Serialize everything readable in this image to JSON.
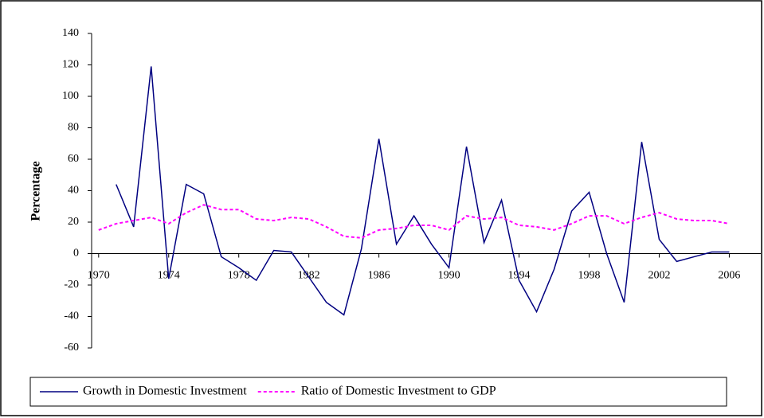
{
  "chart_data": {
    "type": "line",
    "x": [
      1970,
      1971,
      1972,
      1973,
      1974,
      1975,
      1976,
      1977,
      1978,
      1979,
      1980,
      1981,
      1982,
      1983,
      1984,
      1985,
      1986,
      1987,
      1988,
      1989,
      1990,
      1991,
      1992,
      1993,
      1994,
      1995,
      1996,
      1997,
      1998,
      1999,
      2000,
      2001,
      2002,
      2003,
      2004,
      2005,
      2006
    ],
    "series": [
      {
        "name": "Growth in Domestic Investment",
        "color": "#000080",
        "dash": false,
        "values": [
          null,
          44,
          17,
          119,
          -16,
          44,
          38,
          -2,
          -9,
          -17,
          2,
          1,
          -15,
          -31,
          -39,
          3,
          73,
          6,
          24,
          6,
          -9,
          68,
          7,
          34,
          -17,
          -37,
          -10,
          27,
          39,
          0,
          -31,
          71,
          9,
          -5,
          -2,
          1,
          1
        ]
      },
      {
        "name": "Ratio of Domestic Investment to GDP",
        "color": "#ff00ff",
        "dash": true,
        "values": [
          15,
          19,
          21,
          23,
          19,
          26,
          31,
          28,
          28,
          22,
          21,
          23,
          22,
          17,
          11,
          10,
          15,
          16,
          18,
          18,
          15,
          24,
          22,
          23,
          18,
          17,
          15,
          19,
          24,
          24,
          19,
          23,
          26,
          22,
          21,
          21,
          19
        ]
      }
    ],
    "y_label": "Percentage",
    "xlim": [
      1969.6,
      2007.8
    ],
    "xticks": [
      1970,
      1974,
      1978,
      1982,
      1986,
      1990,
      1994,
      1998,
      2002,
      2006
    ],
    "ylim": [
      -60,
      140
    ],
    "yticks": [
      -60,
      -40,
      -20,
      0,
      20,
      40,
      60,
      80,
      100,
      120,
      140
    ],
    "legend": "bottom"
  }
}
